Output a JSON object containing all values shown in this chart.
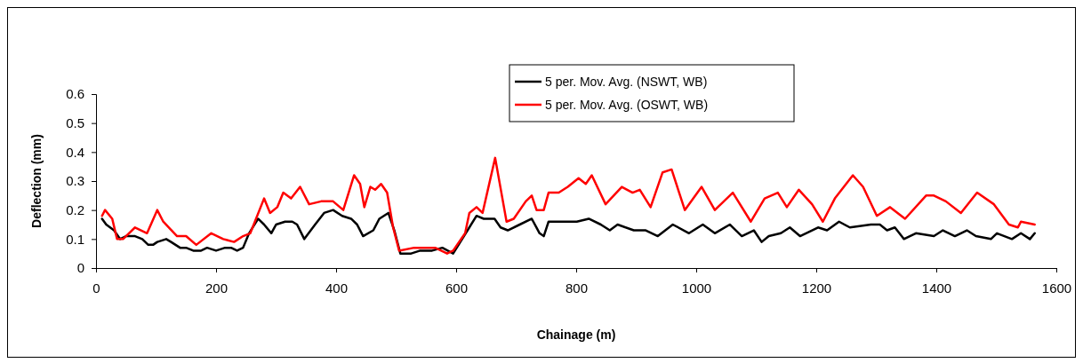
{
  "chart_data": {
    "type": "line",
    "xlabel": "Chainage (m)",
    "ylabel": "Deflection (mm)",
    "xlim": [
      0,
      1600
    ],
    "xticks": [
      0,
      200,
      400,
      600,
      800,
      1000,
      1200,
      1400,
      1600
    ],
    "ylim": [
      0,
      0.6
    ],
    "yticks": [
      0,
      0.1,
      0.2,
      0.3,
      0.4,
      0.5,
      0.6
    ],
    "grid": false,
    "legend": "top",
    "marker": "none",
    "line_style": "solid",
    "series": [
      {
        "name": "5 per. Mov. Avg. (NSWT, WB)",
        "color": "#000000",
        "x": [
          10,
          17,
          30,
          40,
          50,
          65,
          77,
          87,
          95,
          102,
          117,
          125,
          140,
          150,
          162,
          175,
          185,
          200,
          215,
          225,
          235,
          245,
          255,
          270,
          280,
          292,
          300,
          315,
          327,
          335,
          347,
          365,
          380,
          395,
          410,
          425,
          435,
          445,
          462,
          472,
          487,
          497,
          507,
          525,
          540,
          560,
          577,
          595,
          610,
          622,
          634,
          646,
          664,
          674,
          686,
          706,
          726,
          739,
          746,
          754,
          776,
          801,
          821,
          841,
          856,
          869,
          896,
          916,
          936,
          961,
          988,
          1011,
          1031,
          1056,
          1076,
          1096,
          1109,
          1121,
          1141,
          1156,
          1173,
          1203,
          1218,
          1238,
          1256,
          1291,
          1306,
          1318,
          1331,
          1346,
          1366,
          1396,
          1411,
          1431,
          1451,
          1466,
          1491,
          1501,
          1526,
          1541,
          1556,
          1564
        ],
        "values": [
          0.17,
          0.15,
          0.13,
          0.1,
          0.11,
          0.11,
          0.1,
          0.08,
          0.08,
          0.09,
          0.1,
          0.09,
          0.07,
          0.07,
          0.06,
          0.06,
          0.07,
          0.06,
          0.07,
          0.07,
          0.06,
          0.07,
          0.12,
          0.17,
          0.15,
          0.12,
          0.15,
          0.16,
          0.16,
          0.15,
          0.1,
          0.15,
          0.19,
          0.2,
          0.18,
          0.17,
          0.15,
          0.11,
          0.13,
          0.17,
          0.19,
          0.13,
          0.05,
          0.05,
          0.06,
          0.06,
          0.07,
          0.05,
          0.1,
          0.14,
          0.18,
          0.17,
          0.17,
          0.14,
          0.13,
          0.15,
          0.17,
          0.12,
          0.11,
          0.16,
          0.16,
          0.16,
          0.17,
          0.15,
          0.13,
          0.15,
          0.13,
          0.13,
          0.11,
          0.15,
          0.12,
          0.15,
          0.12,
          0.15,
          0.11,
          0.13,
          0.09,
          0.11,
          0.12,
          0.14,
          0.11,
          0.14,
          0.13,
          0.16,
          0.14,
          0.15,
          0.15,
          0.13,
          0.14,
          0.1,
          0.12,
          0.11,
          0.13,
          0.11,
          0.13,
          0.11,
          0.1,
          0.12,
          0.1,
          0.12,
          0.1,
          0.12
        ]
      },
      {
        "name": "5 per. Mov. Avg. (OSWT, WB)",
        "color": "#ff0000",
        "x": [
          10,
          15,
          27,
          35,
          45,
          65,
          85,
          102,
          112,
          135,
          150,
          167,
          192,
          212,
          230,
          245,
          257,
          280,
          290,
          302,
          312,
          325,
          340,
          355,
          375,
          395,
          412,
          430,
          440,
          447,
          457,
          465,
          475,
          485,
          495,
          505,
          530,
          565,
          585,
          595,
          615,
          622,
          634,
          644,
          665,
          684,
          696,
          716,
          726,
          734,
          746,
          754,
          771,
          786,
          804,
          816,
          826,
          849,
          876,
          894,
          906,
          924,
          944,
          959,
          981,
          1009,
          1031,
          1061,
          1091,
          1114,
          1136,
          1151,
          1171,
          1193,
          1211,
          1231,
          1261,
          1278,
          1301,
          1323,
          1348,
          1383,
          1396,
          1416,
          1441,
          1468,
          1496,
          1521,
          1536,
          1541,
          1564
        ],
        "values": [
          0.18,
          0.2,
          0.17,
          0.1,
          0.1,
          0.14,
          0.12,
          0.2,
          0.16,
          0.11,
          0.11,
          0.08,
          0.12,
          0.1,
          0.09,
          0.11,
          0.12,
          0.24,
          0.19,
          0.21,
          0.26,
          0.24,
          0.28,
          0.22,
          0.23,
          0.23,
          0.2,
          0.32,
          0.29,
          0.21,
          0.28,
          0.27,
          0.29,
          0.26,
          0.14,
          0.06,
          0.07,
          0.07,
          0.05,
          0.06,
          0.12,
          0.19,
          0.21,
          0.19,
          0.38,
          0.16,
          0.17,
          0.23,
          0.25,
          0.2,
          0.2,
          0.26,
          0.26,
          0.28,
          0.31,
          0.29,
          0.32,
          0.22,
          0.28,
          0.26,
          0.27,
          0.21,
          0.33,
          0.34,
          0.2,
          0.28,
          0.2,
          0.26,
          0.16,
          0.24,
          0.26,
          0.21,
          0.27,
          0.22,
          0.16,
          0.24,
          0.32,
          0.28,
          0.18,
          0.21,
          0.17,
          0.25,
          0.25,
          0.23,
          0.19,
          0.26,
          0.22,
          0.15,
          0.14,
          0.16,
          0.15
        ]
      }
    ]
  }
}
